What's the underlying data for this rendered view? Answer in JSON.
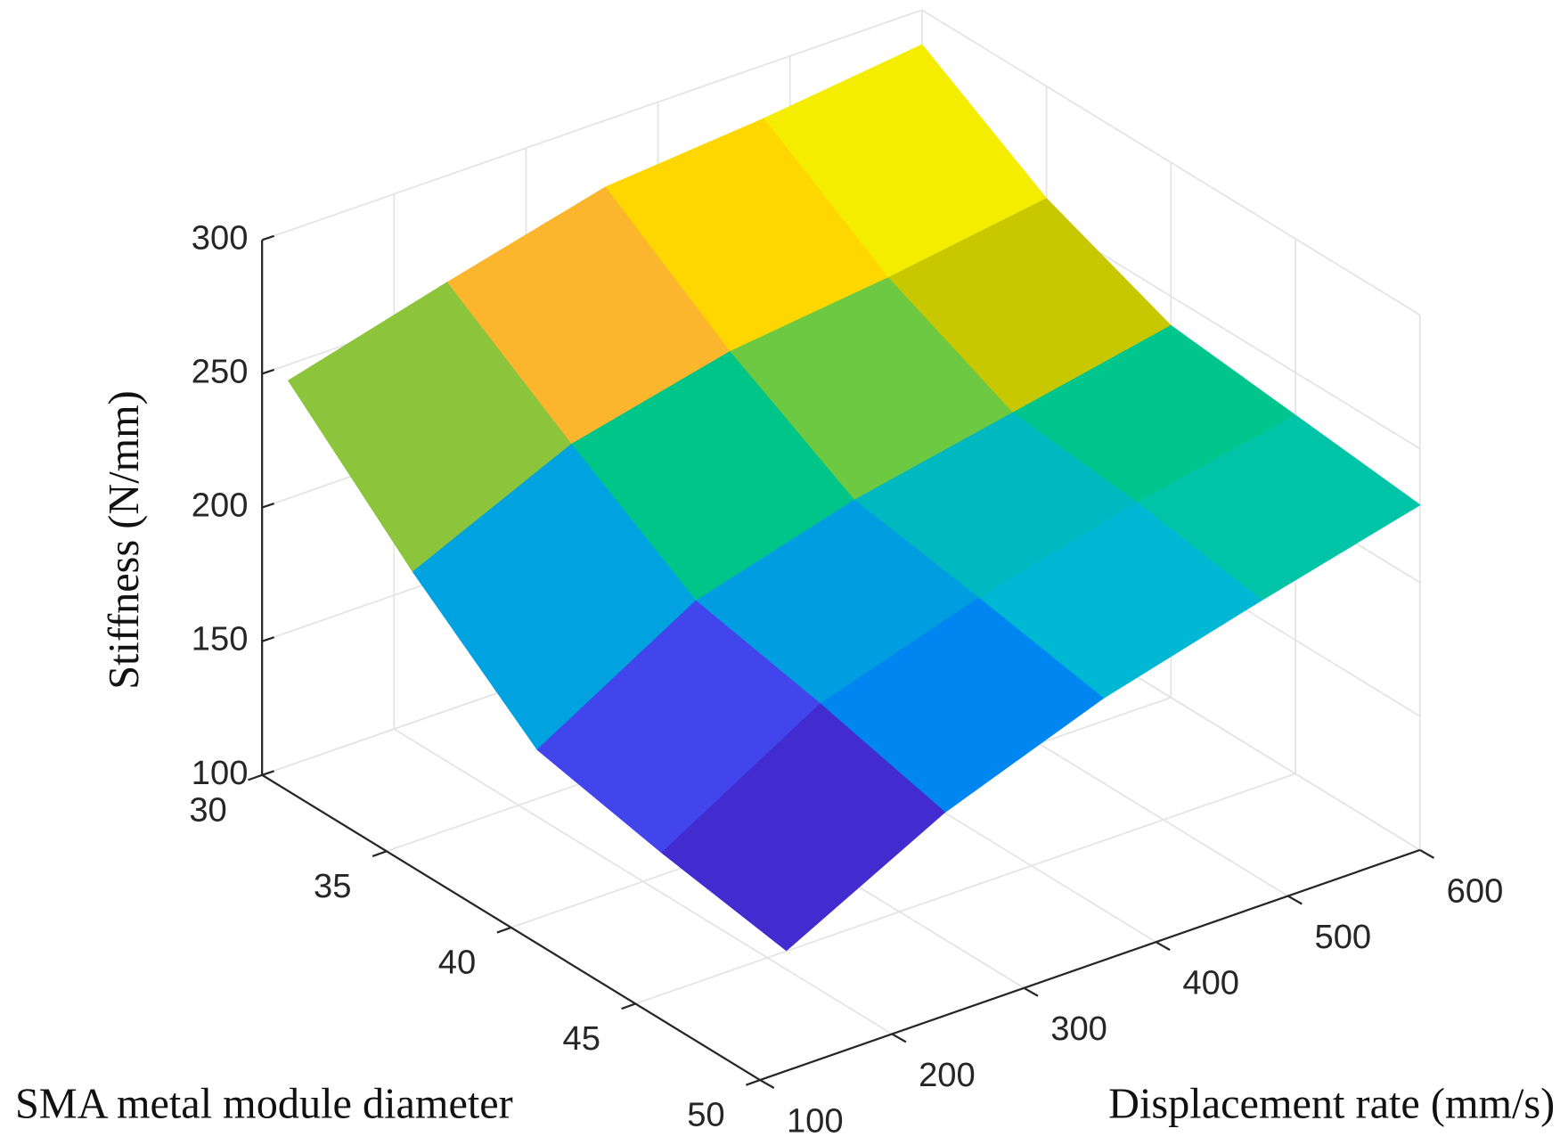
{
  "chart_data": {
    "type": "surface",
    "x_label": "Displacement rate (mm/s)",
    "y_label": "SMA metal module diameter",
    "z_label": "Stiffness (N/mm)",
    "x": [
      120,
      240,
      360,
      480,
      600
    ],
    "y": [
      30,
      35,
      40,
      45,
      50
    ],
    "z": [
      [
        244,
        260,
        275,
        280,
        287
      ],
      [
        201,
        228,
        242,
        249,
        258
      ],
      [
        163,
        198,
        215,
        227,
        239
      ],
      [
        153,
        188,
        207,
        222,
        234
      ],
      [
        145,
        176,
        198,
        214,
        229
      ]
    ],
    "face_colors": [
      [
        "#8cc43c",
        "#fbb62e",
        "#ffd700",
        "#f5ed00"
      ],
      [
        "#00a3e0",
        "#00c589",
        "#6dc941",
        "#c8c800"
      ],
      [
        "#4245ec",
        "#009ee0",
        "#00b8c0",
        "#00c68e"
      ],
      [
        "#432ccf",
        "#0086f0",
        "#00b8d4",
        "#00c4a8"
      ]
    ],
    "xlim": [
      100,
      600
    ],
    "ylim": [
      30,
      50
    ],
    "zlim": [
      100,
      300
    ],
    "xticks": [
      100,
      200,
      300,
      400,
      500,
      600
    ],
    "yticks": [
      30,
      35,
      40,
      45,
      50
    ],
    "zticks": [
      100,
      150,
      200,
      250,
      300
    ],
    "grid": true
  }
}
